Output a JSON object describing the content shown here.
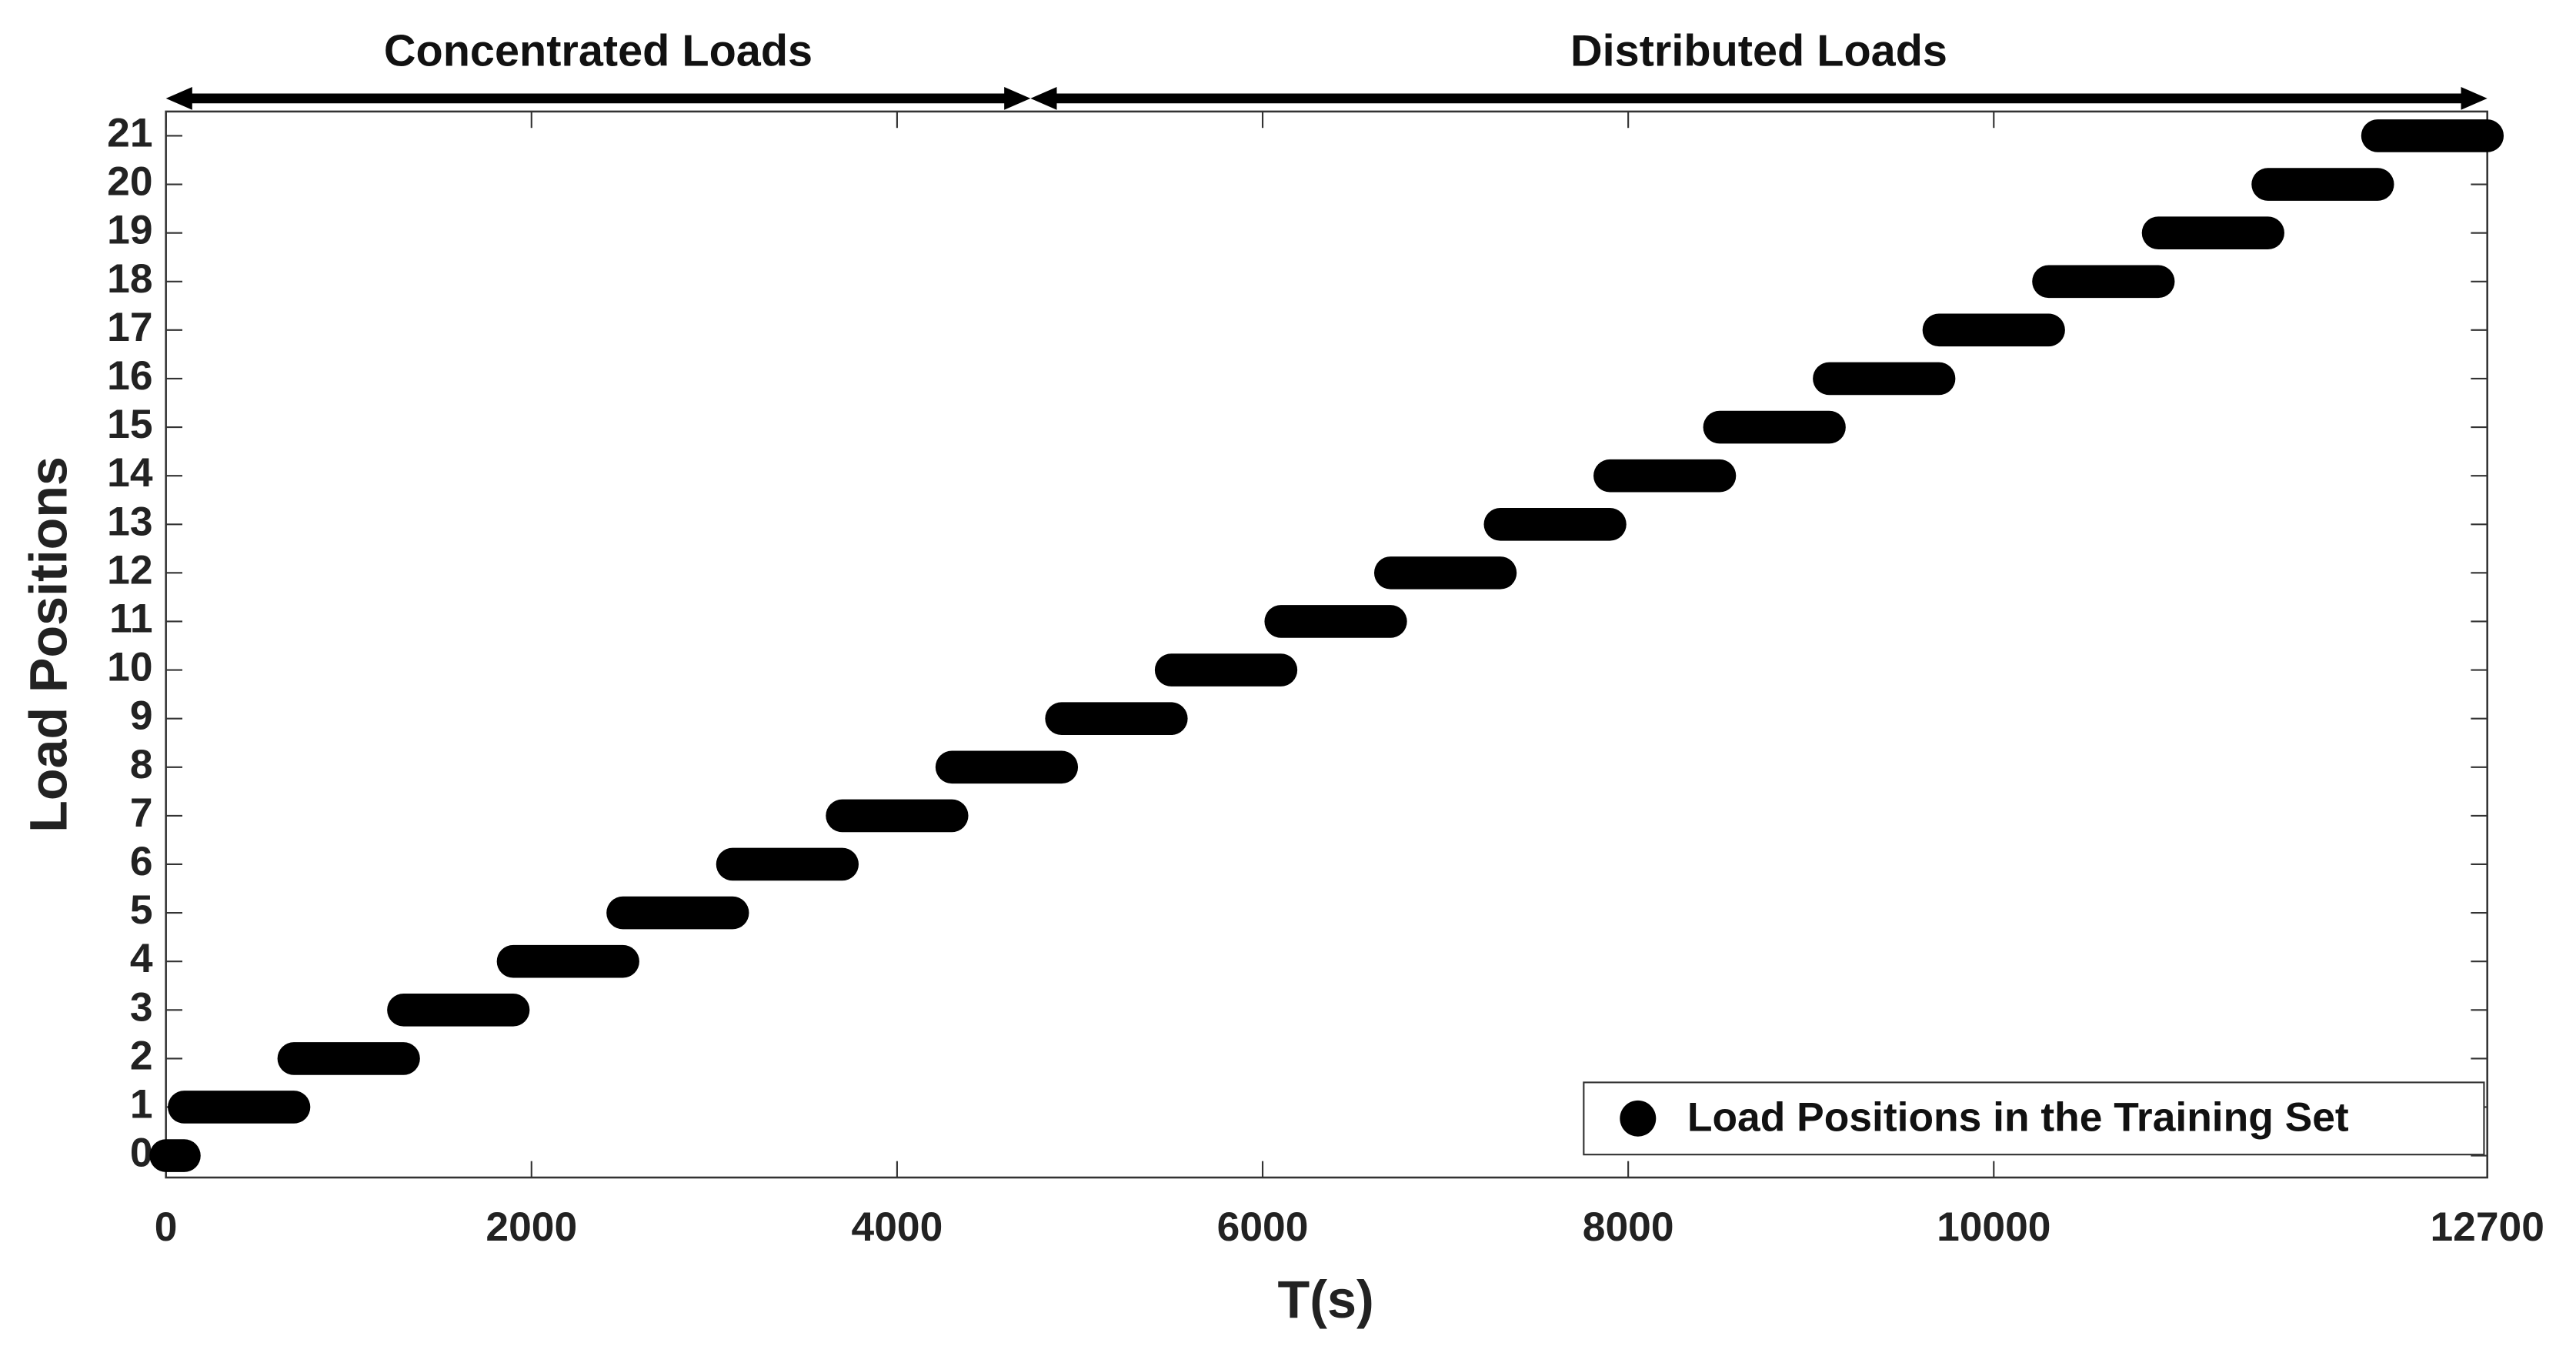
{
  "chart_data": {
    "type": "segment",
    "xlabel": "T(s)",
    "ylabel": "Load Positions",
    "color": "#000000",
    "x_start": [
      0,
      100,
      700,
      1300,
      1900,
      2500,
      3100,
      3700,
      4300,
      4900,
      5500,
      6100,
      6700,
      7300,
      7900,
      8500,
      9100,
      9700,
      10300,
      10900,
      11500,
      12100
    ],
    "x_end": [
      100,
      700,
      1300,
      1900,
      2500,
      3100,
      3700,
      4300,
      4900,
      5500,
      6100,
      6700,
      7300,
      7900,
      8500,
      9100,
      9700,
      10300,
      10900,
      11500,
      12100,
      12700
    ],
    "values": [
      0,
      1,
      2,
      3,
      4,
      5,
      6,
      7,
      8,
      9,
      10,
      11,
      12,
      13,
      14,
      15,
      16,
      17,
      18,
      19,
      20,
      21
    ],
    "xlim": [
      0,
      12700
    ],
    "xticks": [
      0,
      2000,
      4000,
      6000,
      8000,
      10000,
      12700
    ],
    "ylim": [
      -0.45,
      21.5
    ],
    "yticks": [
      0,
      1,
      2,
      3,
      4,
      5,
      6,
      7,
      8,
      9,
      10,
      11,
      12,
      13,
      14,
      15,
      16,
      17,
      18,
      19,
      20,
      21
    ],
    "legend": {
      "label": "Load Positions in the Training Set",
      "position": "lower right"
    },
    "annotations": [
      {
        "text": "Concentrated Loads",
        "x_start": 0,
        "x_end": 4730
      },
      {
        "text": "Distributed Loads",
        "x_start": 4730,
        "x_end": 12700
      }
    ]
  }
}
